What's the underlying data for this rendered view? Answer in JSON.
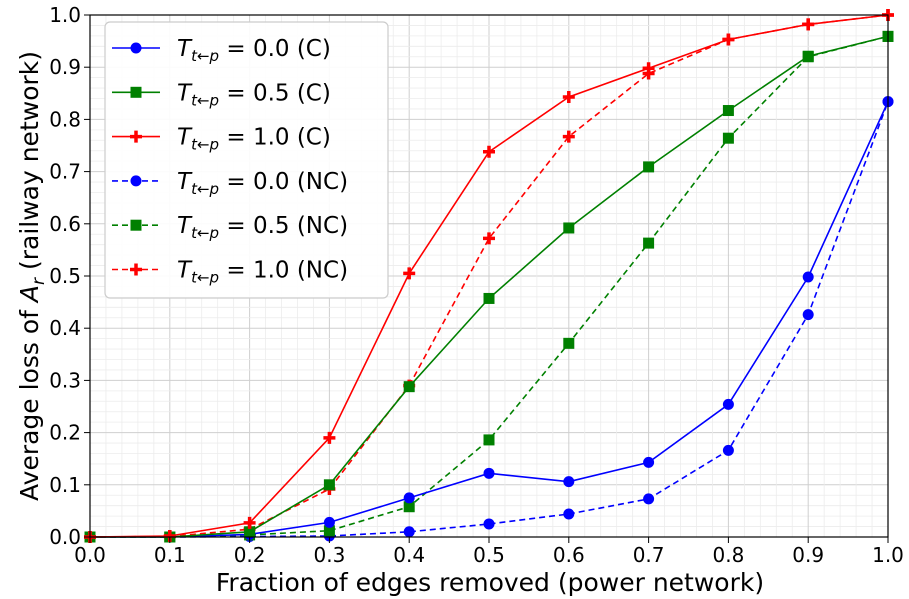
{
  "chart_data": {
    "type": "line",
    "title": "",
    "xlabel": "Fraction of edges removed (power network)",
    "ylabel_prefix": "Average loss of ",
    "ylabel_var": "A",
    "ylabel_sub": "r",
    "ylabel_suffix": " (railway network)",
    "xlim": [
      0.0,
      1.0
    ],
    "ylim": [
      0.0,
      1.0
    ],
    "grid": true,
    "legend_position": "upper-left",
    "xticks": [
      "0.0",
      "0.1",
      "0.2",
      "0.3",
      "0.4",
      "0.5",
      "0.6",
      "0.7",
      "0.8",
      "0.9",
      "1.0"
    ],
    "yticks": [
      "0.0",
      "0.1",
      "0.2",
      "0.3",
      "0.4",
      "0.5",
      "0.6",
      "0.7",
      "0.8",
      "0.9",
      "1.0"
    ],
    "x": [
      0.0,
      0.1,
      0.2,
      0.3,
      0.4,
      0.5,
      0.6,
      0.7,
      0.8,
      0.9,
      1.0
    ],
    "series": [
      {
        "name_var": "T",
        "name_sub": "t←p",
        "name_rest": " = 0.0 (C)",
        "color": "#0000ff",
        "marker": "circle",
        "dashed": false,
        "values": [
          0.0,
          0.0,
          0.005,
          0.028,
          0.075,
          0.122,
          0.106,
          0.143,
          0.254,
          0.498,
          0.834
        ]
      },
      {
        "name_var": "T",
        "name_sub": "t←p",
        "name_rest": " = 0.5 (C)",
        "color": "#008000",
        "marker": "square",
        "dashed": false,
        "values": [
          0.0,
          0.0,
          0.01,
          0.1,
          0.288,
          0.457,
          0.592,
          0.709,
          0.817,
          0.921,
          0.959
        ]
      },
      {
        "name_var": "T",
        "name_sub": "t←p",
        "name_rest": " = 1.0 (C)",
        "color": "#ff0000",
        "marker": "plus",
        "dashed": false,
        "values": [
          0.0,
          0.002,
          0.027,
          0.19,
          0.505,
          0.738,
          0.843,
          0.898,
          0.953,
          0.982,
          1.0
        ]
      },
      {
        "name_var": "T",
        "name_sub": "t←p",
        "name_rest": " = 0.0 (NC)",
        "color": "#0000ff",
        "marker": "circle",
        "dashed": true,
        "values": [
          0.0,
          0.0,
          0.001,
          0.002,
          0.01,
          0.025,
          0.044,
          0.073,
          0.166,
          0.426,
          0.834
        ]
      },
      {
        "name_var": "T",
        "name_sub": "t←p",
        "name_rest": " = 0.5 (NC)",
        "color": "#008000",
        "marker": "square",
        "dashed": true,
        "values": [
          0.0,
          0.0,
          0.004,
          0.012,
          0.058,
          0.186,
          0.371,
          0.563,
          0.764,
          0.92,
          0.959
        ]
      },
      {
        "name_var": "T",
        "name_sub": "t←p",
        "name_rest": " = 1.0 (NC)",
        "color": "#ff0000",
        "marker": "plus",
        "dashed": true,
        "values": [
          0.0,
          0.001,
          0.015,
          0.092,
          0.29,
          0.572,
          0.767,
          0.888,
          0.953,
          0.982,
          1.0
        ]
      }
    ]
  }
}
